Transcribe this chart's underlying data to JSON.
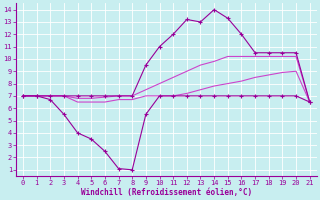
{
  "xlabel": "Windchill (Refroidissement éolien,°C)",
  "background_color": "#c8eef0",
  "grid_color": "#b0d8dc",
  "line_color_dark": "#990099",
  "line_color_light": "#cc44cc",
  "xlim": [
    -0.5,
    21.5
  ],
  "ylim": [
    0.5,
    14.5
  ],
  "xticks": [
    0,
    1,
    2,
    3,
    4,
    5,
    6,
    7,
    8,
    9,
    10,
    11,
    12,
    13,
    14,
    15,
    16,
    17,
    18,
    19,
    20,
    21
  ],
  "yticks": [
    1,
    2,
    3,
    4,
    5,
    6,
    7,
    8,
    9,
    10,
    11,
    12,
    13,
    14
  ],
  "series_top_x": [
    0,
    1,
    2,
    3,
    4,
    5,
    6,
    7,
    8,
    9,
    10,
    11,
    12,
    13,
    14,
    15,
    16,
    17,
    18,
    19,
    20,
    21
  ],
  "series_top_y": [
    7,
    7,
    7,
    7,
    7,
    7,
    7,
    7,
    7,
    9.5,
    11,
    12,
    13.2,
    13,
    14,
    13.3,
    12,
    10.5,
    10.5,
    10.5,
    10.5,
    6.5
  ],
  "series_dip_x": [
    0,
    1,
    2,
    3,
    4,
    5,
    6,
    7,
    8,
    9,
    10,
    11,
    12,
    13,
    14,
    15,
    16,
    17,
    18,
    19,
    20,
    21
  ],
  "series_dip_y": [
    7,
    7,
    6.7,
    5.5,
    4,
    3.5,
    2.5,
    1.1,
    1.0,
    5.5,
    7,
    7,
    7,
    7,
    7,
    7,
    7,
    7,
    7,
    7,
    7,
    6.5
  ],
  "series_upper_flat_x": [
    0,
    1,
    2,
    3,
    4,
    5,
    6,
    7,
    8,
    9,
    10,
    11,
    12,
    13,
    14,
    15,
    16,
    17,
    18,
    19,
    20,
    21
  ],
  "series_upper_flat_y": [
    7,
    7,
    7,
    7,
    6.8,
    6.8,
    6.9,
    7.0,
    7.0,
    7.5,
    8.0,
    8.5,
    9.0,
    9.5,
    9.8,
    10.2,
    10.2,
    10.2,
    10.2,
    10.2,
    10.2,
    6.5
  ],
  "series_lower_flat_x": [
    0,
    1,
    2,
    3,
    4,
    5,
    6,
    7,
    8,
    9,
    10,
    11,
    12,
    13,
    14,
    15,
    16,
    17,
    18,
    19,
    20,
    21
  ],
  "series_lower_flat_y": [
    7,
    7,
    7,
    7,
    6.5,
    6.5,
    6.5,
    6.7,
    6.7,
    7.0,
    7.0,
    7.0,
    7.2,
    7.5,
    7.8,
    8.0,
    8.2,
    8.5,
    8.7,
    8.9,
    9.0,
    6.5
  ]
}
